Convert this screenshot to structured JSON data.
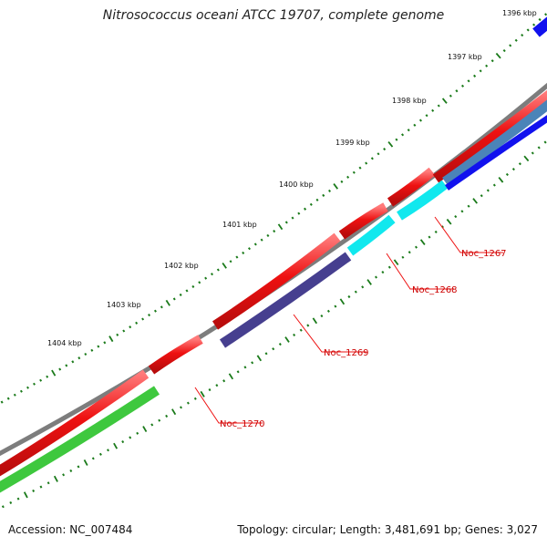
{
  "title": "Nitrosococcus oceani ATCC 19707, complete genome",
  "footer": {
    "accession": "Accession: NC_007484",
    "summary": "Topology: circular; Length: 3,481,691 bp; Genes: 3,027"
  },
  "colors": {
    "backbone": "#7d7d7d",
    "forward_cds": "#ee1111",
    "reverse_blue": "#1111ee",
    "reverse_steel": "#4b84b8",
    "reverse_cyan": "#11e8ee",
    "reverse_slate": "#463f8f",
    "reverse_green": "#3ec83e",
    "tick": "#1a7a1a",
    "label_line": "#ee1111"
  },
  "ruler": {
    "unit": "kbp",
    "labels": [
      "1396 kbp",
      "1397 kbp",
      "1398 kbp",
      "1399 kbp",
      "1400 kbp",
      "1401 kbp",
      "1402 kbp",
      "1403 kbp",
      "1404 kbp"
    ]
  },
  "genes": [
    {
      "locus": "Noc_1267",
      "strand": "reverse",
      "color": "reverse_steel"
    },
    {
      "locus": "Noc_1268",
      "strand": "reverse",
      "color": "reverse_cyan"
    },
    {
      "locus": "Noc_1269",
      "strand": "reverse",
      "color": "reverse_slate"
    },
    {
      "locus": "Noc_1270",
      "strand": "reverse",
      "color": "reverse_green"
    }
  ]
}
